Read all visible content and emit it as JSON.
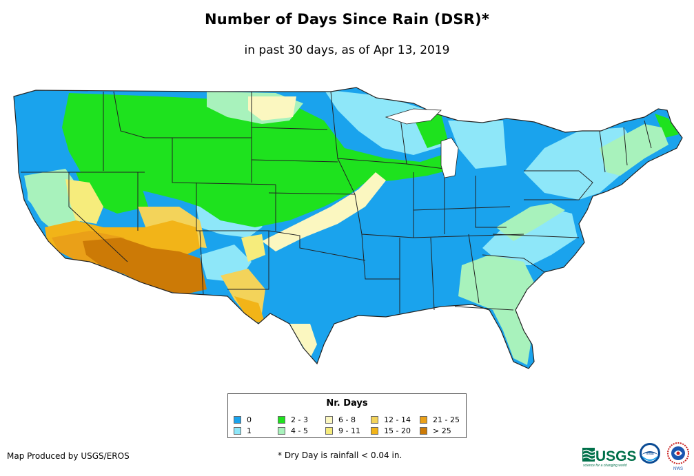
{
  "title": "Number of Days Since Rain (DSR)*",
  "subtitle": "in past 30 days, as of Apr 13, 2019",
  "legend": {
    "title": "Nr. Days",
    "items": [
      {
        "label": "0",
        "color": "#1aa3ed"
      },
      {
        "label": "1",
        "color": "#8ee7f9"
      },
      {
        "label": "2 - 3",
        "color": "#1ee21e"
      },
      {
        "label": "4 - 5",
        "color": "#a8f2bc"
      },
      {
        "label": "6 - 8",
        "color": "#fbf7c0"
      },
      {
        "label": "9 - 11",
        "color": "#f6ec7c"
      },
      {
        "label": "12 - 14",
        "color": "#f3d35a"
      },
      {
        "label": "15 - 20",
        "color": "#f2b418"
      },
      {
        "label": "21 - 25",
        "color": "#eaa018"
      },
      {
        "label": "> 25",
        "color": "#cc7a06"
      }
    ]
  },
  "credit": "Map Produced by USGS/EROS",
  "footnote": "* Dry Day is rainfall < 0.04 in.",
  "logos": {
    "usgs_text": "USGS",
    "usgs_tagline": "science for a changing world",
    "noaa_text": "noaa",
    "nws_text": "NWS"
  }
}
